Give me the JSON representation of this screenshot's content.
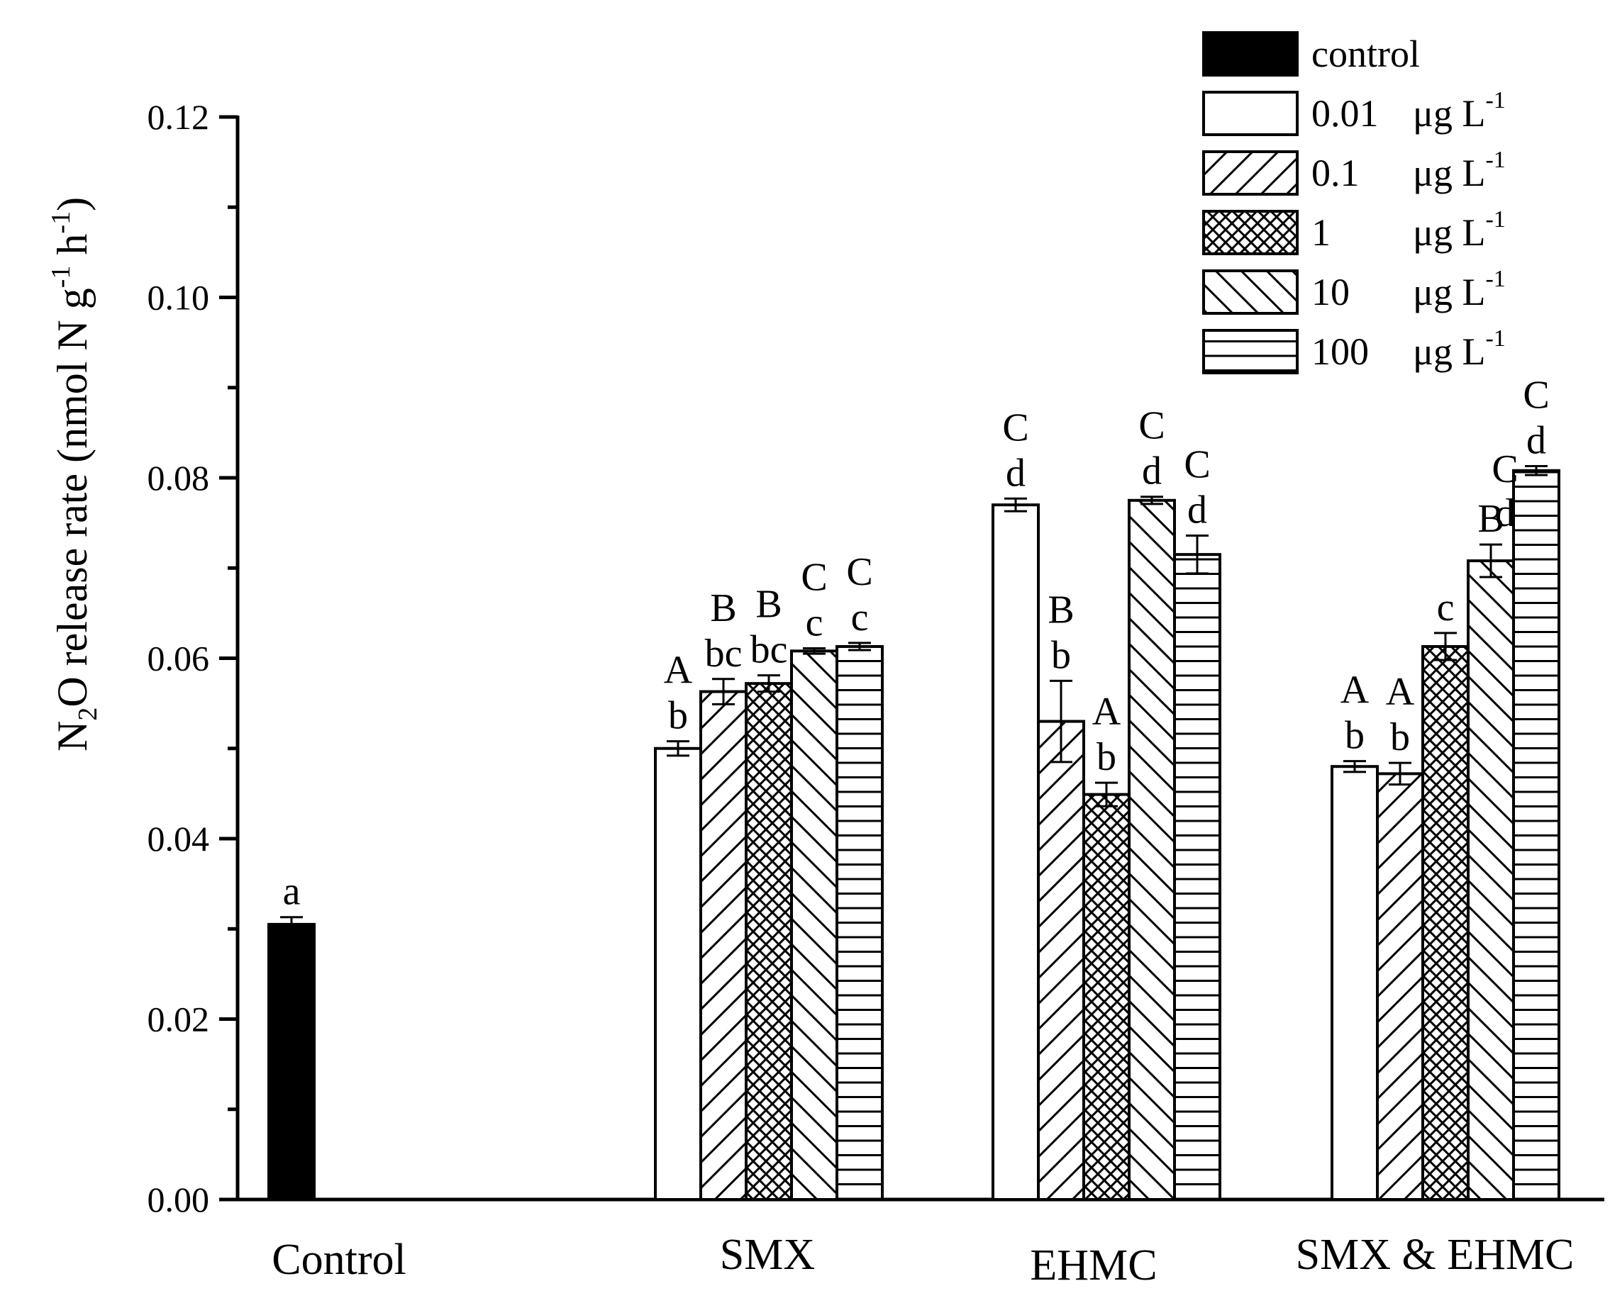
{
  "chart_data": {
    "type": "bar",
    "title": "",
    "xlabel": "",
    "ylabel": {
      "main": "N",
      "sub": "2",
      "rest1": "O release rate (nmol N g",
      "sup1": "-1",
      "rest2": " h",
      "sup2": "-1",
      "rest3": ")"
    },
    "ylim": [
      0,
      0.12
    ],
    "yticks": [
      "0.00",
      "0.02",
      "0.04",
      "0.06",
      "0.08",
      "0.10",
      "0.12"
    ],
    "categories": [
      "Control",
      "SMX",
      "EHMC",
      "SMX & EHMC"
    ],
    "series": [
      {
        "name": "control",
        "pattern": "solid",
        "values": [
          0.0305,
          null,
          null,
          null
        ],
        "errors": [
          0.0008,
          null,
          null,
          null
        ],
        "upper": [
          "",
          "",
          "",
          ""
        ],
        "lower": [
          "a",
          "",
          "",
          ""
        ]
      },
      {
        "name": "0.01",
        "unit": "μg L",
        "sup": "-1",
        "pattern": "empty",
        "values": [
          null,
          0.05,
          0.077,
          0.048
        ],
        "errors": [
          null,
          0.0008,
          0.0007,
          0.0006
        ],
        "upper": [
          "",
          "A",
          "C",
          "A"
        ],
        "lower": [
          "",
          "b",
          "d",
          "b"
        ]
      },
      {
        "name": "0.1",
        "unit": "μg L",
        "sup": "-1",
        "pattern": "diag-up",
        "values": [
          null,
          0.0563,
          0.053,
          0.0472
        ],
        "errors": [
          null,
          0.0014,
          0.0045,
          0.0012
        ],
        "upper": [
          "",
          "B",
          "B",
          "A"
        ],
        "lower": [
          "",
          "bc",
          "b",
          "b"
        ]
      },
      {
        "name": "1",
        "unit": "μg L",
        "sup": "-1",
        "pattern": "cross",
        "values": [
          null,
          0.0572,
          0.0449,
          0.0613
        ],
        "errors": [
          null,
          0.0009,
          0.0013,
          0.0015
        ],
        "upper": [
          "",
          "B",
          "A",
          ""
        ],
        "lower": [
          "",
          "bc",
          "b",
          "c"
        ]
      },
      {
        "name": "10",
        "unit": "μg L",
        "sup": "-1",
        "pattern": "diag-down",
        "values": [
          null,
          0.0608,
          0.0775,
          0.0708
        ],
        "errors": [
          null,
          0.0003,
          0.0004,
          0.0018
        ],
        "upper": [
          "",
          "C",
          "C",
          "B"
        ],
        "lower": [
          "",
          "c",
          "d",
          ""
        ]
      },
      {
        "name": "100",
        "unit": "μg L",
        "sup": "-1",
        "pattern": "horizontal",
        "values": [
          null,
          0.0613,
          0.0715,
          0.0808
        ],
        "errors": [
          null,
          0.0004,
          0.0021,
          0.0005
        ],
        "upper": [
          "",
          "C",
          "C",
          "C"
        ],
        "lower": [
          "",
          "c",
          "d",
          "d"
        ]
      }
    ],
    "extra_annotations": [
      {
        "series": "10",
        "category": "SMX & EHMC",
        "text": "C"
      },
      {
        "series": "10",
        "category": "SMX & EHMC",
        "text": "d"
      }
    ],
    "legend_position": "top-right"
  }
}
